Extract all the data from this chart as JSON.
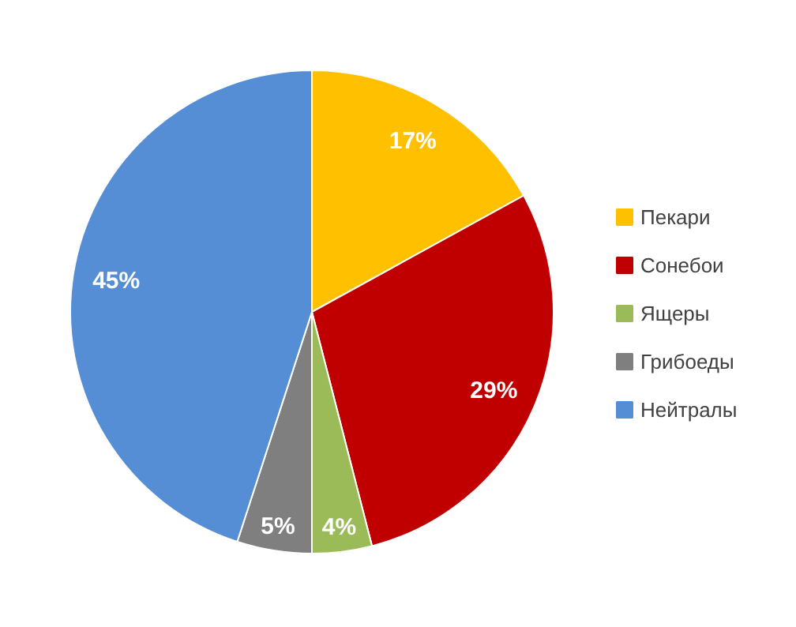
{
  "chart_data": {
    "type": "pie",
    "categories": [
      "Пекари",
      "Сонебои",
      "Ящеры",
      "Грибоеды",
      "Нейтралы"
    ],
    "values": [
      17,
      29,
      4,
      5,
      45
    ],
    "colors": [
      "#ffc000",
      "#c00000",
      "#9bbb59",
      "#7f7f7f",
      "#558ed5"
    ],
    "value_labels": [
      "17%",
      "29%",
      "4%",
      "5%",
      "45%"
    ],
    "legend": "right"
  }
}
